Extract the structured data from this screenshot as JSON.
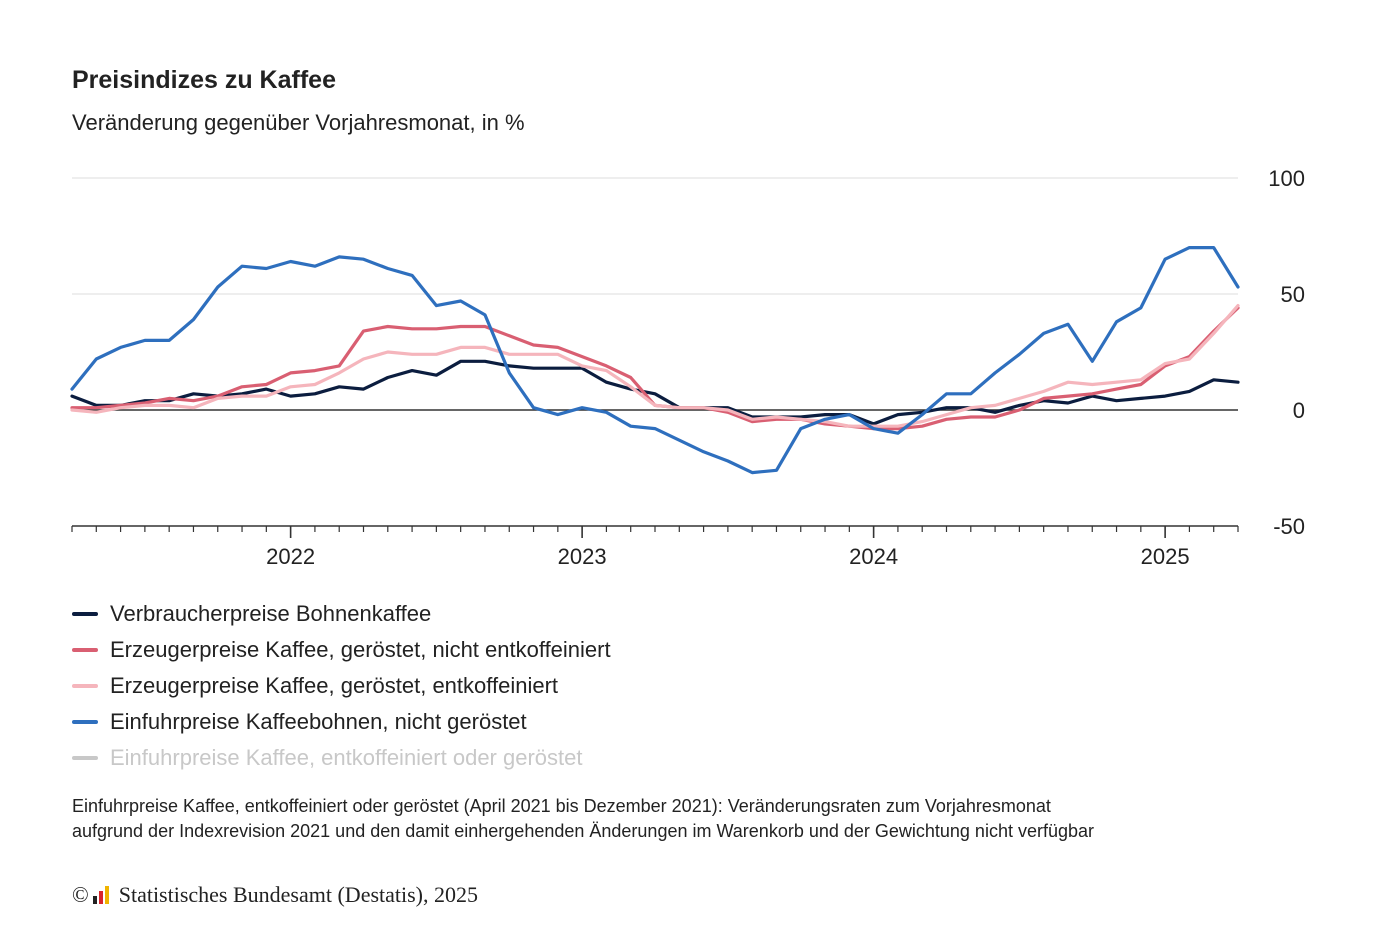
{
  "title": "Preisindizes zu Kaffee",
  "subtitle": "Veränderung gegenüber Vorjahresmonat, in %",
  "chart_data": {
    "type": "line",
    "ylim": [
      -50,
      100
    ],
    "yticks": [
      100,
      50,
      0,
      -50
    ],
    "ytick_labels": [
      "100",
      "50",
      "0",
      "-50"
    ],
    "x_start": "2021-04",
    "x_end": "2025-04",
    "year_ticks": [
      {
        "label": "2022",
        "index": 9
      },
      {
        "label": "2023",
        "index": 21
      },
      {
        "label": "2024",
        "index": 33
      },
      {
        "label": "2025",
        "index": 45
      }
    ],
    "grid": true,
    "legend_position": "bottom-left",
    "series": [
      {
        "name": "Verbraucherpreise Bohnenkaffee",
        "color": "#0b1d3f",
        "values": [
          6,
          2,
          2,
          4,
          4,
          7,
          6,
          7,
          9,
          6,
          7,
          10,
          9,
          14,
          17,
          15,
          21,
          21,
          19,
          18,
          18,
          18,
          12,
          9,
          7,
          1,
          1,
          1,
          -3,
          -3,
          -3,
          -2,
          -2,
          -6,
          -2,
          -1,
          1,
          1,
          -1,
          2,
          4,
          3,
          6,
          4,
          5,
          6,
          8,
          13,
          12
        ]
      },
      {
        "name": "Erzeugerpreise Kaffee, geröstet, nicht entkoffeiniert",
        "color": "#d95f72",
        "values": [
          1,
          1,
          2,
          3,
          5,
          4,
          6,
          10,
          11,
          16,
          17,
          19,
          34,
          36,
          35,
          35,
          36,
          36,
          32,
          28,
          27,
          23,
          19,
          14,
          2,
          1,
          1,
          -1,
          -5,
          -4,
          -4,
          -6,
          -7,
          -8,
          -8,
          -7,
          -4,
          -3,
          -3,
          0,
          5,
          6,
          7,
          9,
          11,
          19,
          23,
          34,
          44
        ]
      },
      {
        "name": "Erzeugerpreise Kaffee, geröstet, entkoffeiniert",
        "color": "#f5b5bc",
        "values": [
          0,
          -1,
          1,
          2,
          2,
          1,
          5,
          6,
          6,
          10,
          11,
          16,
          22,
          25,
          24,
          24,
          27,
          27,
          24,
          24,
          24,
          19,
          17,
          10,
          2,
          1,
          1,
          0,
          -4,
          -3,
          -4,
          -5,
          -7,
          -7,
          -7,
          -5,
          -2,
          1,
          2,
          5,
          8,
          12,
          11,
          12,
          13,
          20,
          22,
          33,
          45
        ]
      },
      {
        "name": "Einfuhrpreise Kaffeebohnen, nicht geröstet",
        "color": "#2e6fbe",
        "values": [
          9,
          22,
          27,
          30,
          30,
          39,
          53,
          62,
          61,
          64,
          62,
          66,
          65,
          61,
          58,
          45,
          47,
          41,
          16,
          1,
          -2,
          1,
          -1,
          -7,
          -8,
          -13,
          -18,
          -22,
          -27,
          -26,
          -8,
          -4,
          -2,
          -8,
          -10,
          -2,
          7,
          7,
          16,
          24,
          33,
          37,
          21,
          38,
          44,
          65,
          70,
          70,
          53
        ]
      },
      {
        "name": "Einfuhrpreise Kaffee, entkoffeiniert oder geröstet",
        "color": "#c8c8c8",
        "muted": true,
        "values": []
      }
    ]
  },
  "note": {
    "line1": "Einfuhrpreise Kaffee, entkoffeiniert oder geröstet (April 2021 bis Dezember 2021): Veränderungsraten zum Vorjahresmonat",
    "line2": "aufgrund der Indexrevision 2021 und den damit einhergehenden Änderungen im Warenkorb und der Gewichtung nicht verfügbar"
  },
  "footer": {
    "copyright": "©",
    "source": "Statistisches Bundesamt (Destatis), 2025"
  }
}
